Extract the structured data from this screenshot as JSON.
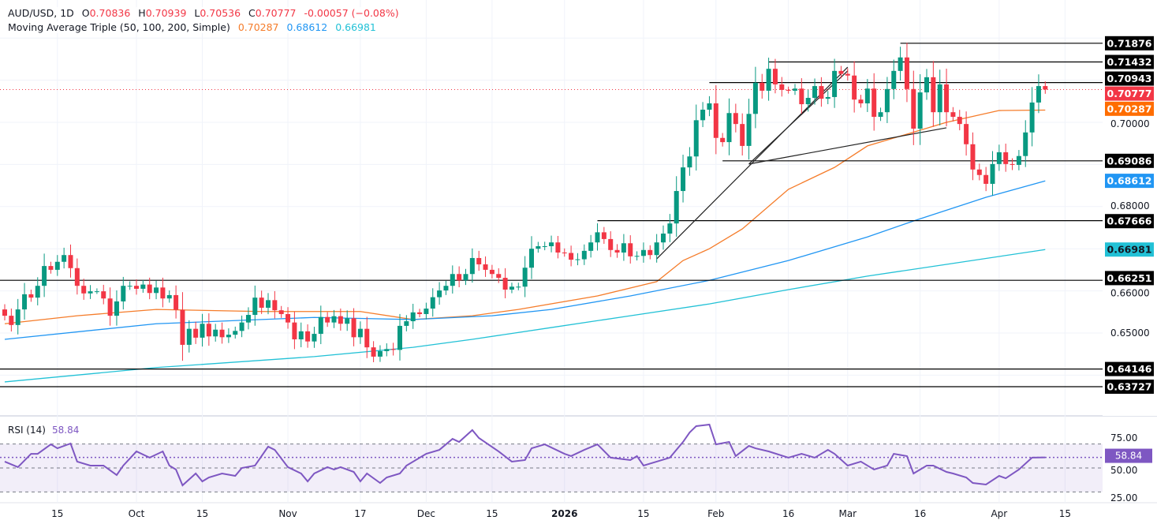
{
  "header": {
    "symbol": "AUD/USD, 1D",
    "open_label": "O",
    "open": "0.70836",
    "high_label": "H",
    "high": "0.70939",
    "low_label": "L",
    "low": "0.70536",
    "close_label": "C",
    "close": "0.70777",
    "change": "-0.00057 (−0.08%)",
    "indicator": "Moving Average Triple (50, 100, 200, Simple)",
    "ma50": "0.70287",
    "ma100": "0.68612",
    "ma200": "0.66981"
  },
  "colors": {
    "up": "#089981",
    "down": "#f23645",
    "ma50": "#f57c2a",
    "ma100": "#2196f3",
    "ma200": "#22c1d6",
    "rsi": "#7e57c2",
    "last_price": "#f23645"
  },
  "chart_data": [
    {
      "type": "candlestick",
      "title": "AUD/USD, 1D",
      "ylim": [
        0.633,
        0.724
      ],
      "grid": true,
      "y_ticks": [
        "0.70000",
        "0.68000",
        "0.66000",
        "0.65000"
      ],
      "x_ticks": [
        "15",
        "Oct",
        "15",
        "Nov",
        "17",
        "Dec",
        "15",
        "2026",
        "15",
        "Feb",
        "16",
        "Mar",
        "16",
        "Apr",
        "15"
      ],
      "closes": [
        0.6541,
        0.6519,
        0.6556,
        0.6592,
        0.6584,
        0.6612,
        0.6659,
        0.665,
        0.6669,
        0.6685,
        0.6654,
        0.6612,
        0.6594,
        0.6599,
        0.6599,
        0.6582,
        0.6541,
        0.6575,
        0.6612,
        0.6612,
        0.6605,
        0.6615,
        0.6595,
        0.6608,
        0.6582,
        0.659,
        0.6555,
        0.6472,
        0.651,
        0.6489,
        0.6522,
        0.6492,
        0.6508,
        0.649,
        0.6496,
        0.6505,
        0.6525,
        0.6543,
        0.6584,
        0.656,
        0.6578,
        0.6554,
        0.6545,
        0.6525,
        0.6485,
        0.6504,
        0.648,
        0.6498,
        0.6538,
        0.6525,
        0.654,
        0.6522,
        0.6535,
        0.649,
        0.651,
        0.6466,
        0.6444,
        0.6457,
        0.6462,
        0.646,
        0.6517,
        0.6528,
        0.6549,
        0.6545,
        0.6558,
        0.6585,
        0.6601,
        0.6612,
        0.664,
        0.6625,
        0.664,
        0.6678,
        0.6663,
        0.665,
        0.664,
        0.6631,
        0.6603,
        0.661,
        0.661,
        0.6655,
        0.67,
        0.6706,
        0.6706,
        0.6715,
        0.6691,
        0.669,
        0.6674,
        0.6675,
        0.6695,
        0.6715,
        0.6739,
        0.6723,
        0.6697,
        0.6691,
        0.6713,
        0.6682,
        0.6683,
        0.6697,
        0.6685,
        0.6715,
        0.6736,
        0.676,
        0.6837,
        0.6893,
        0.6919,
        0.7005,
        0.703,
        0.7045,
        0.6963,
        0.6953,
        0.7022,
        0.6996,
        0.6944,
        0.702,
        0.7094,
        0.7075,
        0.7127,
        0.709,
        0.7077,
        0.7075,
        0.708,
        0.7043,
        0.7058,
        0.7086,
        0.7056,
        0.706,
        0.7122,
        0.7115,
        0.7111,
        0.7054,
        0.7045,
        0.708,
        0.7013,
        0.7024,
        0.7079,
        0.7122,
        0.7154,
        0.7079,
        0.6985,
        0.7071,
        0.7107,
        0.7024,
        0.709,
        0.7024,
        0.7013,
        0.6996,
        0.6948,
        0.6888,
        0.6875,
        0.6854,
        0.6901,
        0.6929,
        0.6901,
        0.6899,
        0.692,
        0.6976,
        0.7047,
        0.7086,
        0.70777
      ],
      "moving_averages": [
        {
          "name": "MA 50",
          "color": "#f57c2a",
          "last": "0.70287",
          "points": [
            [
              0,
              0.6522
            ],
            [
              11,
              0.6541
            ],
            [
              23,
              0.6556
            ],
            [
              39,
              0.6551
            ],
            [
              54,
              0.6551
            ],
            [
              62,
              0.6532
            ],
            [
              71,
              0.6541
            ],
            [
              78,
              0.6556
            ],
            [
              90,
              0.6588
            ],
            [
              99,
              0.6622
            ],
            [
              103,
              0.6672
            ],
            [
              107,
              0.67
            ],
            [
              112,
              0.6747
            ],
            [
              119,
              0.6841
            ],
            [
              126,
              0.6893
            ],
            [
              131,
              0.6944
            ],
            [
              137,
              0.6972
            ],
            [
              143,
              0.7
            ],
            [
              151,
              0.7028
            ],
            [
              158,
              0.7029
            ]
          ]
        },
        {
          "name": "MA 100",
          "color": "#2196f3",
          "last": "0.68612",
          "points": [
            [
              0,
              0.6485
            ],
            [
              23,
              0.6522
            ],
            [
              47,
              0.6537
            ],
            [
              62,
              0.6532
            ],
            [
              74,
              0.6541
            ],
            [
              83,
              0.6556
            ],
            [
              95,
              0.6588
            ],
            [
              107,
              0.6625
            ],
            [
              119,
              0.6672
            ],
            [
              131,
              0.6728
            ],
            [
              138,
              0.6766
            ],
            [
              149,
              0.6822
            ],
            [
              158,
              0.6861
            ]
          ]
        },
        {
          "name": "MA 200",
          "color": "#22c1d6",
          "last": "0.66981",
          "points": [
            [
              0,
              0.6384
            ],
            [
              23,
              0.6418
            ],
            [
              47,
              0.6444
            ],
            [
              62,
              0.6466
            ],
            [
              71,
              0.6485
            ],
            [
              83,
              0.6513
            ],
            [
              95,
              0.6541
            ],
            [
              107,
              0.6569
            ],
            [
              119,
              0.6603
            ],
            [
              131,
              0.6635
            ],
            [
              143,
              0.6663
            ],
            [
              158,
              0.6698
            ]
          ]
        }
      ],
      "levels": [
        {
          "price": "0.71876",
          "from_bar": 136
        },
        {
          "price": "0.71432",
          "from_bar": 116
        },
        {
          "price": "0.70943",
          "from_bar": 107
        },
        {
          "price": "0.69086",
          "from_bar": 109
        },
        {
          "price": "0.67666",
          "from_bar": 90
        },
        {
          "price": "0.66251",
          "from_bar": 0
        },
        {
          "price": "0.64146",
          "from_bar": 0
        },
        {
          "price": "0.63727",
          "from_bar": 0
        }
      ],
      "trendlines": [
        [
          [
            99,
            0.6676
          ],
          [
            128,
            0.7131
          ]
        ],
        [
          [
            113,
            0.6901
          ],
          [
            128,
            0.7122
          ]
        ],
        [
          [
            113,
            0.6901
          ],
          [
            143,
            0.6987
          ]
        ]
      ],
      "last_price": "0.70777"
    },
    {
      "type": "line",
      "title": "RSI (14)",
      "value": "58.84",
      "ylim": [
        20,
        92
      ],
      "y_ticks": [
        "75.00",
        "50.00",
        "25.00"
      ],
      "band": [
        30,
        70
      ],
      "points": [
        [
          0,
          55.3
        ],
        [
          2,
          50.7
        ],
        [
          4,
          61.8
        ],
        [
          5,
          61.8
        ],
        [
          7,
          69.7
        ],
        [
          8,
          66.4
        ],
        [
          10,
          70.4
        ],
        [
          11,
          55.3
        ],
        [
          13,
          52
        ],
        [
          15,
          52
        ],
        [
          17,
          44.1
        ],
        [
          18,
          52
        ],
        [
          20,
          63.8
        ],
        [
          22,
          58.6
        ],
        [
          24,
          63.8
        ],
        [
          25,
          52
        ],
        [
          26,
          48.7
        ],
        [
          27,
          35.5
        ],
        [
          29,
          45.4
        ],
        [
          30,
          38.8
        ],
        [
          31,
          42.1
        ],
        [
          33,
          45.4
        ],
        [
          35,
          43.4
        ],
        [
          36,
          50
        ],
        [
          38,
          52
        ],
        [
          40,
          67.8
        ],
        [
          41,
          65.1
        ],
        [
          43,
          50.7
        ],
        [
          45,
          45.4
        ],
        [
          46,
          38.8
        ],
        [
          47,
          45.4
        ],
        [
          49,
          50.7
        ],
        [
          50,
          48.7
        ],
        [
          51,
          50.7
        ],
        [
          53,
          46.7
        ],
        [
          54,
          38.8
        ],
        [
          55,
          45.4
        ],
        [
          57,
          37.5
        ],
        [
          58,
          42.1
        ],
        [
          60,
          45.4
        ],
        [
          61,
          52
        ],
        [
          64,
          61.8
        ],
        [
          66,
          65.1
        ],
        [
          68,
          74.3
        ],
        [
          69,
          71.7
        ],
        [
          71,
          81.6
        ],
        [
          72,
          75
        ],
        [
          75,
          63.8
        ],
        [
          77,
          55.3
        ],
        [
          79,
          56.6
        ],
        [
          80,
          66.4
        ],
        [
          82,
          69.7
        ],
        [
          85,
          61.8
        ],
        [
          86,
          59.9
        ],
        [
          88,
          65.1
        ],
        [
          90,
          69.7
        ],
        [
          92,
          58.6
        ],
        [
          95,
          56.6
        ],
        [
          96,
          59.9
        ],
        [
          97,
          52
        ],
        [
          99,
          55.3
        ],
        [
          101,
          58.6
        ],
        [
          103,
          71.7
        ],
        [
          104,
          79.6
        ],
        [
          105,
          84.9
        ],
        [
          107,
          86.2
        ],
        [
          108,
          69.7
        ],
        [
          110,
          71.7
        ],
        [
          111,
          59.9
        ],
        [
          113,
          68.4
        ],
        [
          114,
          66.4
        ],
        [
          116,
          63.8
        ],
        [
          119,
          58.6
        ],
        [
          121,
          61.8
        ],
        [
          123,
          58.6
        ],
        [
          125,
          65.1
        ],
        [
          126,
          61.8
        ],
        [
          128,
          52
        ],
        [
          130,
          55.3
        ],
        [
          132,
          48.7
        ],
        [
          134,
          52
        ],
        [
          135,
          61.8
        ],
        [
          137,
          59.9
        ],
        [
          138,
          45.4
        ],
        [
          140,
          52
        ],
        [
          141,
          52
        ],
        [
          143,
          46.7
        ],
        [
          144,
          45.4
        ],
        [
          146,
          42.1
        ],
        [
          147,
          37.5
        ],
        [
          149,
          36.2
        ],
        [
          151,
          43.4
        ],
        [
          152,
          41.4
        ],
        [
          154,
          48.7
        ],
        [
          156,
          58.6
        ],
        [
          158,
          58.84
        ]
      ]
    }
  ]
}
